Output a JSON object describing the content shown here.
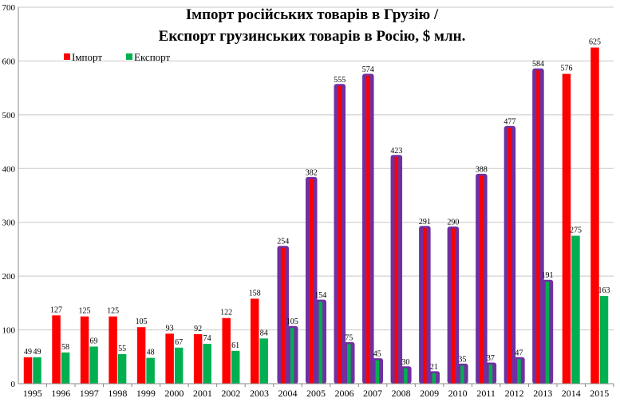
{
  "chart_data": {
    "type": "bar",
    "title": "Імпорт російських товарів в Грузію /",
    "subtitle": "Експорт грузинських товарів в Росію, $ млн.",
    "xlabel": "",
    "ylabel": "",
    "ylim": [
      0,
      700
    ],
    "yticks": [
      0,
      100,
      200,
      300,
      400,
      500,
      600,
      700
    ],
    "grid": true,
    "legend_position": "top-left",
    "categories": [
      "1995",
      "1996",
      "1997",
      "1998",
      "1999",
      "2000",
      "2001",
      "2002",
      "2003",
      "2004",
      "2005",
      "2006",
      "2007",
      "2008",
      "2009",
      "2010",
      "2011",
      "2012",
      "2013",
      "2014",
      "2015"
    ],
    "series": [
      {
        "name": "Імпорт",
        "color": "#ff0000",
        "values": [
          49,
          127,
          125,
          125,
          105,
          93,
          92,
          122,
          158,
          254,
          382,
          555,
          574,
          423,
          291,
          290,
          388,
          477,
          584,
          576,
          625
        ],
        "labels": [
          "49",
          "127",
          "125",
          "125",
          "105",
          "93",
          "92",
          "122",
          "158",
          "254",
          "382",
          "555",
          "574",
          "423",
          "291",
          "290",
          "388",
          "477",
          "584",
          "576",
          "625"
        ]
      },
      {
        "name": "Експорт",
        "color": "#00b050",
        "values": [
          49,
          58,
          69,
          55,
          48,
          67,
          74,
          61,
          84,
          105,
          154,
          75,
          45,
          30,
          21,
          35,
          37,
          47,
          191,
          275,
          163
        ],
        "labels": [
          "49",
          "58",
          "69",
          "55",
          "48",
          "67",
          "74",
          "61",
          "84",
          "105",
          "154",
          "75",
          "45",
          "30",
          "21",
          "35",
          "37",
          "47",
          "191",
          "275",
          "163"
        ]
      }
    ],
    "highlight_color": "#7030a0",
    "highlighted_categories": [
      "2004",
      "2005",
      "2006",
      "2007",
      "2008",
      "2009",
      "2010",
      "2011",
      "2012",
      "2013"
    ]
  }
}
